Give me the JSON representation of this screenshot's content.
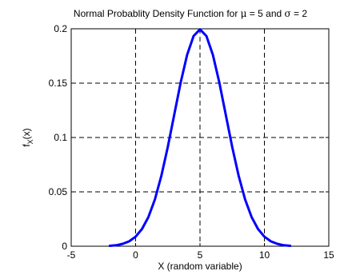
{
  "chart_data": {
    "type": "line",
    "title": "Normal Probablity Density Function for μ = 5 and σ = 2",
    "title_parts": [
      "Normal Probablity Density Function for ",
      "μ",
      " = 5 and ",
      "σ",
      " = 2"
    ],
    "xlabel": "X (random variable)",
    "ylabel_main": "f",
    "ylabel_sub": "X",
    "ylabel_tail": "(x)",
    "xlim": [
      -5,
      15
    ],
    "ylim": [
      0,
      0.2
    ],
    "xticks": [
      -5,
      0,
      5,
      10,
      15
    ],
    "xtick_labels": [
      "-5",
      "0",
      "5",
      "10",
      "15"
    ],
    "yticks": [
      0,
      0.05,
      0.1,
      0.15,
      0.2
    ],
    "ytick_labels": [
      "0",
      "0.05",
      "0.1",
      "0.15",
      "0.2"
    ],
    "grid": true,
    "line_color": "#0000ff",
    "series": [
      {
        "mean": 5,
        "sigma": 2,
        "x": [
          -2,
          -1.5,
          -1,
          -0.5,
          0,
          0.5,
          1,
          1.5,
          2,
          2.5,
          3,
          3.5,
          4,
          4.5,
          5,
          5.5,
          6,
          6.5,
          7,
          7.5,
          8,
          8.5,
          9,
          9.5,
          10,
          10.5,
          11,
          11.5,
          12
        ],
        "y": [
          0.0004,
          0.0009,
          0.0022,
          0.0045,
          0.0088,
          0.0159,
          0.027,
          0.0431,
          0.0648,
          0.0913,
          0.121,
          0.1506,
          0.176,
          0.1933,
          0.1995,
          0.1933,
          0.176,
          0.1506,
          0.121,
          0.0913,
          0.0648,
          0.0431,
          0.027,
          0.0159,
          0.0088,
          0.0045,
          0.0022,
          0.0009,
          0.0004
        ]
      }
    ]
  }
}
